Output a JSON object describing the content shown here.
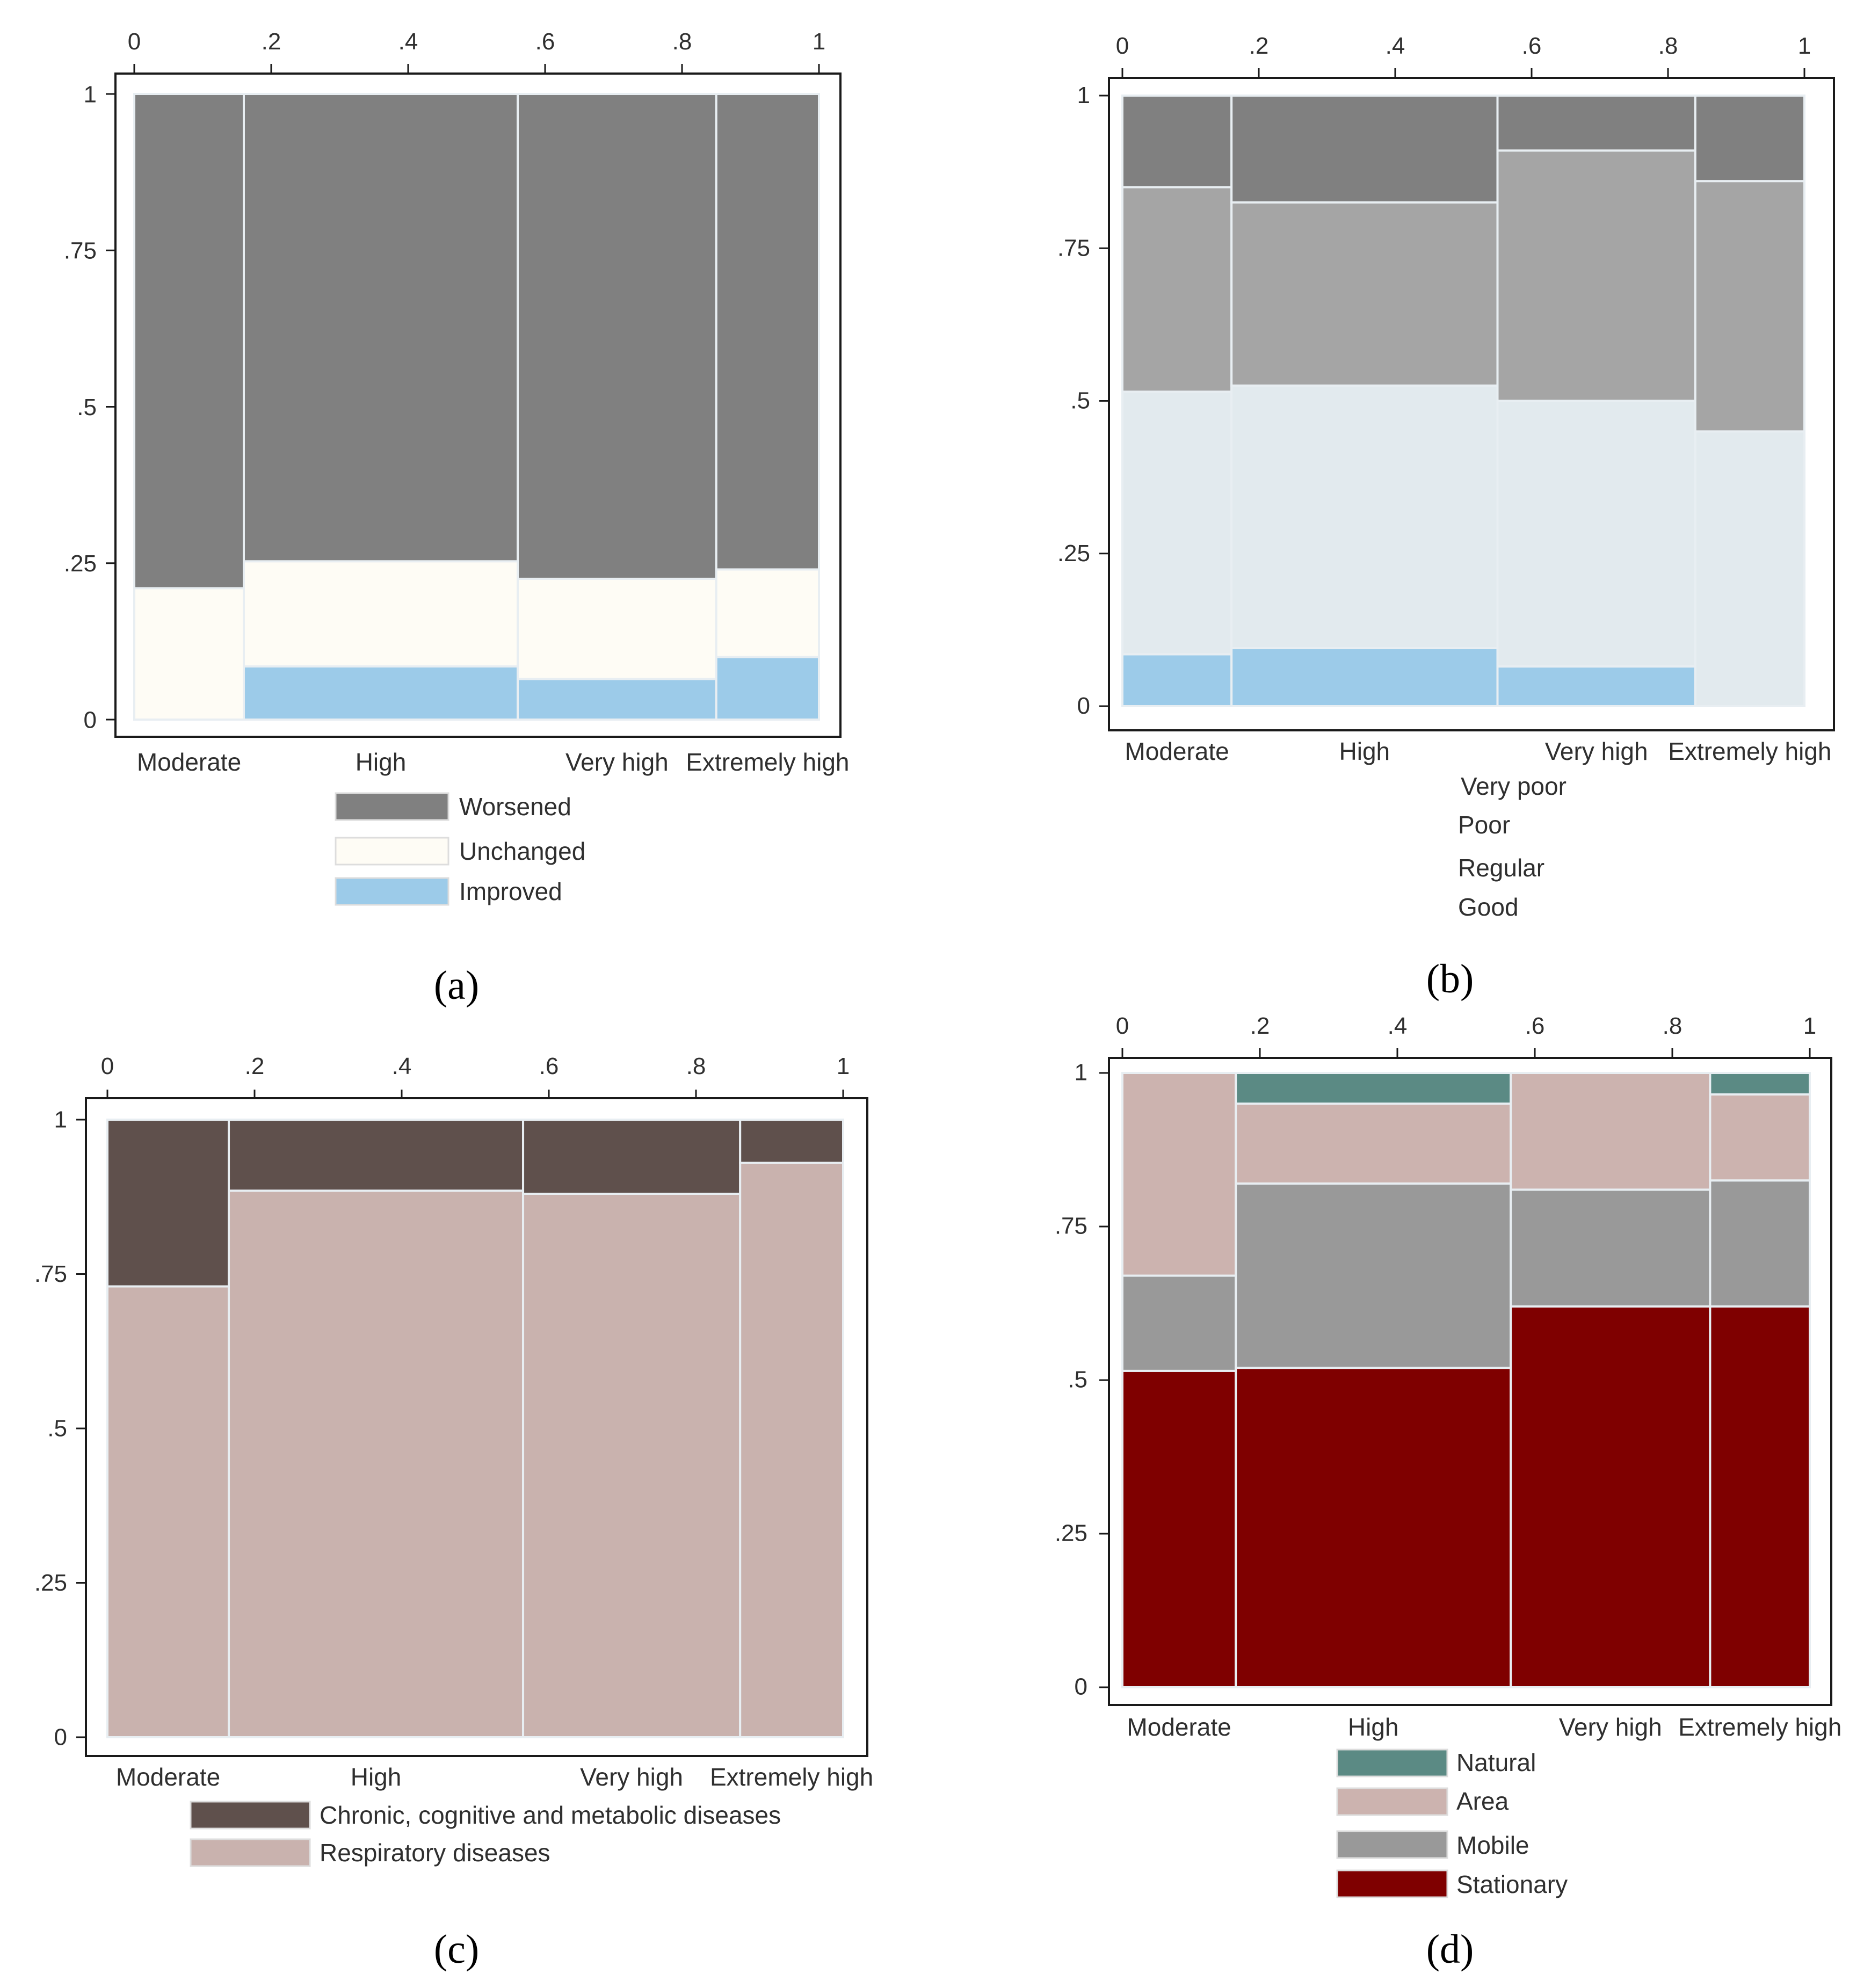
{
  "chart_data": [
    {
      "type": "mosaic",
      "panel_label": "(a)",
      "categories": [
        "Moderate",
        "High",
        "Very high",
        "Extremely high"
      ],
      "category_widths": [
        0.16,
        0.4,
        0.29,
        0.15
      ],
      "x_ticks": [
        "0",
        ".2",
        ".4",
        ".6",
        ".8",
        "1"
      ],
      "y_ticks": [
        "0",
        ".25",
        ".5",
        ".75",
        "1"
      ],
      "xlim": [
        0,
        1
      ],
      "ylim": [
        0,
        1
      ],
      "series": [
        {
          "name": "Improved",
          "color": "#9ccbe9",
          "values": [
            0.0,
            0.085,
            0.065,
            0.1
          ]
        },
        {
          "name": "Unchanged",
          "color": "#fefcf5",
          "values": [
            0.21,
            0.168,
            0.16,
            0.14
          ]
        },
        {
          "name": "Worsened",
          "color": "#808080",
          "values": [
            0.79,
            0.747,
            0.775,
            0.76
          ]
        }
      ],
      "legend": [
        "Worsened",
        "Unchanged",
        "Improved"
      ],
      "legend_placement": "bottom"
    },
    {
      "type": "mosaic",
      "panel_label": "(b)",
      "categories": [
        "Moderate",
        "High",
        "Very high",
        "Extremely high"
      ],
      "category_widths": [
        0.16,
        0.39,
        0.29,
        0.16
      ],
      "x_ticks": [
        "0",
        ".2",
        ".4",
        ".6",
        ".8",
        "1"
      ],
      "y_ticks": [
        "0",
        ".25",
        ".5",
        ".75",
        "1"
      ],
      "xlim": [
        0,
        1
      ],
      "ylim": [
        0,
        1
      ],
      "series": [
        {
          "name": "Good",
          "color": "#9ccbe9",
          "values": [
            0.085,
            0.095,
            0.065,
            0.0
          ]
        },
        {
          "name": "Regular",
          "color": "#e2eaee",
          "values": [
            0.43,
            0.43,
            0.435,
            0.45
          ]
        },
        {
          "name": "Poor",
          "color": "#a5a5a5",
          "values": [
            0.335,
            0.3,
            0.41,
            0.41
          ]
        },
        {
          "name": "Very poor",
          "color": "#808080",
          "values": [
            0.15,
            0.175,
            0.09,
            0.14
          ]
        }
      ],
      "legend": [
        "Very poor",
        "Poor",
        "Regular",
        "Good"
      ],
      "legend_placement": "bottom"
    },
    {
      "type": "mosaic",
      "panel_label": "(c)",
      "categories": [
        "Moderate",
        "High",
        "Very high",
        "Extremely high"
      ],
      "category_widths": [
        0.165,
        0.4,
        0.295,
        0.14
      ],
      "x_ticks": [
        "0",
        ".2",
        ".4",
        ".6",
        ".8",
        "1"
      ],
      "y_ticks": [
        "0",
        ".25",
        ".5",
        ".75",
        "1"
      ],
      "xlim": [
        0,
        1
      ],
      "ylim": [
        0,
        1
      ],
      "series": [
        {
          "name": "Respiratory diseases",
          "color": "#c9b2ae",
          "values": [
            0.73,
            0.885,
            0.88,
            0.93
          ]
        },
        {
          "name": "Chronic, cognitive and metabolic diseases",
          "color": "#5f504c",
          "values": [
            0.27,
            0.115,
            0.12,
            0.07
          ]
        }
      ],
      "legend": [
        "Chronic, cognitive and metabolic diseases",
        "Respiratory diseases"
      ],
      "legend_placement": "bottom"
    },
    {
      "type": "mosaic",
      "panel_label": "(d)",
      "categories": [
        "Moderate",
        "High",
        "Very high",
        "Extremely high"
      ],
      "category_widths": [
        0.165,
        0.4,
        0.29,
        0.145
      ],
      "x_ticks": [
        "0",
        ".2",
        ".4",
        ".6",
        ".8",
        "1"
      ],
      "y_ticks": [
        "0",
        ".25",
        ".5",
        ".75",
        "1"
      ],
      "xlim": [
        0,
        1
      ],
      "ylim": [
        0,
        1
      ],
      "series": [
        {
          "name": "Stationary",
          "color": "#7f0000",
          "values": [
            0.515,
            0.52,
            0.62,
            0.62
          ]
        },
        {
          "name": "Mobile",
          "color": "#999999",
          "values": [
            0.155,
            0.3,
            0.19,
            0.205
          ]
        },
        {
          "name": "Area",
          "color": "#ccb3af",
          "values": [
            0.33,
            0.13,
            0.19,
            0.14
          ]
        },
        {
          "name": "Natural",
          "color": "#5b8a84",
          "values": [
            0.0,
            0.05,
            0.0,
            0.035
          ]
        }
      ],
      "legend": [
        "Natural",
        "Area",
        "Mobile",
        "Stationary"
      ],
      "legend_placement": "bottom"
    }
  ]
}
